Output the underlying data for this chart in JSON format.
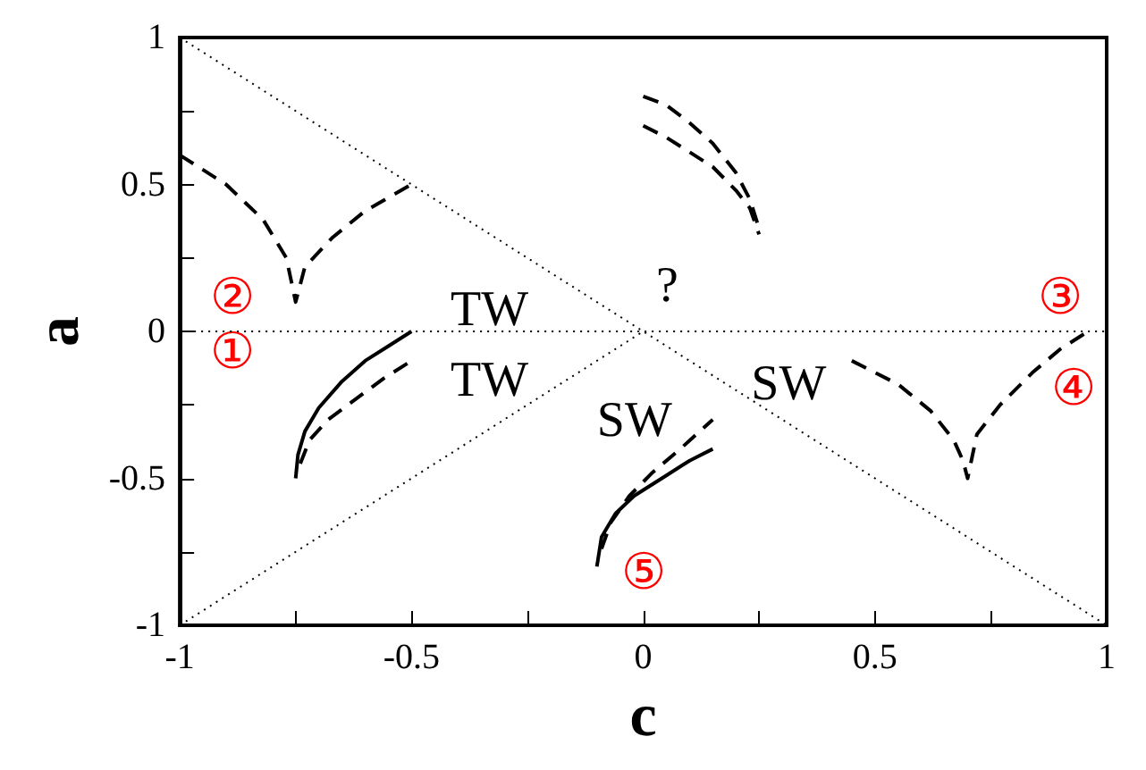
{
  "chart_data": {
    "type": "line",
    "xlabel": "c",
    "ylabel": "a",
    "grid": false,
    "marker": "none",
    "xlim": [
      -1,
      1
    ],
    "ylim": [
      -1,
      1
    ],
    "xticks": [
      -1,
      {
        "value": -0.75,
        "label": null
      },
      -0.5,
      {
        "value": -0.25,
        "label": null
      },
      0,
      {
        "value": 0.25,
        "label": null
      },
      0.5,
      {
        "value": 0.75,
        "label": null
      },
      1
    ],
    "yticks": [
      -1,
      {
        "value": -0.75,
        "label": null
      },
      -0.5,
      {
        "value": -0.25,
        "label": null
      },
      0,
      {
        "value": 0.25,
        "label": null
      },
      0.5,
      {
        "value": 0.75,
        "label": null
      },
      1
    ],
    "series": [
      {
        "color": "#000000",
        "line_style": "dotted",
        "x": [
          -1,
          1
        ],
        "values": [
          1,
          -1
        ]
      },
      {
        "color": "#000000",
        "line_style": "dotted",
        "x": [
          -1,
          1
        ],
        "values": [
          0,
          0
        ]
      },
      {
        "color": "#000000",
        "line_style": "dotted",
        "x": [
          -1,
          0
        ],
        "values": [
          -1,
          0
        ]
      },
      {
        "color": "#000000",
        "line_style": "dashed",
        "x": [
          -1,
          -0.9,
          -0.82,
          -0.77,
          -0.75,
          -0.73,
          -0.67,
          -0.6,
          -0.5
        ],
        "values": [
          0.6,
          0.5,
          0.38,
          0.25,
          0.1,
          0.22,
          0.32,
          0.41,
          0.5
        ]
      },
      {
        "color": "#000000",
        "line_style": "dashed",
        "x": [
          0,
          0.05,
          0.1,
          0.15,
          0.2,
          0.23,
          0.25
        ],
        "values": [
          0.8,
          0.77,
          0.71,
          0.64,
          0.54,
          0.45,
          0.35
        ]
      },
      {
        "color": "#000000",
        "line_style": "dashed",
        "x": [
          0,
          0.05,
          0.1,
          0.15,
          0.2,
          0.23,
          0.25
        ],
        "values": [
          0.7,
          0.66,
          0.61,
          0.56,
          0.48,
          0.42,
          0.33
        ]
      },
      {
        "color": "#000000",
        "line_style": "solid",
        "x": [
          -0.75,
          -0.745,
          -0.73,
          -0.7,
          -0.65,
          -0.6,
          -0.55,
          -0.5
        ],
        "values": [
          -0.5,
          -0.42,
          -0.34,
          -0.26,
          -0.17,
          -0.1,
          -0.05,
          0
        ]
      },
      {
        "color": "#000000",
        "line_style": "dashed",
        "x": [
          -0.74,
          -0.72,
          -0.68,
          -0.62,
          -0.56,
          -0.5
        ],
        "values": [
          -0.45,
          -0.37,
          -0.3,
          -0.23,
          -0.16,
          -0.1
        ]
      },
      {
        "color": "#000000",
        "line_style": "solid",
        "x": [
          -0.1,
          -0.09,
          -0.06,
          -0.02,
          0.05,
          0.1,
          0.15
        ],
        "values": [
          -0.8,
          -0.7,
          -0.62,
          -0.56,
          -0.49,
          -0.44,
          -0.4
        ]
      },
      {
        "color": "#000000",
        "line_style": "dashed",
        "x": [
          -0.09,
          -0.07,
          -0.03,
          0.02,
          0.08,
          0.15
        ],
        "values": [
          -0.74,
          -0.65,
          -0.56,
          -0.48,
          -0.4,
          -0.3
        ]
      },
      {
        "color": "#000000",
        "line_style": "dashed",
        "x": [
          0.45,
          0.55,
          0.62,
          0.67,
          0.69,
          0.7,
          0.72,
          0.77,
          0.84,
          0.9,
          0.96
        ],
        "values": [
          -0.1,
          -0.18,
          -0.27,
          -0.37,
          -0.44,
          -0.5,
          -0.35,
          -0.25,
          -0.14,
          -0.06,
          0
        ]
      }
    ],
    "annotations": [
      "①",
      "②",
      "③",
      "④",
      "⑤",
      "TW",
      "TW",
      "SW",
      "SW",
      "?"
    ]
  }
}
